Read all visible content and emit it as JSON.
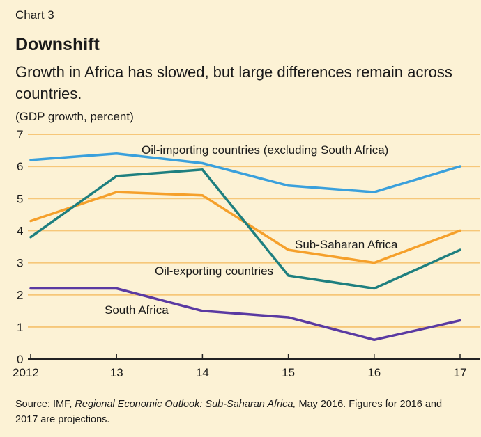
{
  "header": {
    "chart_label": "Chart 3",
    "title": "Downshift",
    "subtitle": "Growth in Africa has slowed, but large differences remain across countries.",
    "y_unit": "(GDP growth, percent)"
  },
  "footer": {
    "source_prefix": "Source: IMF, ",
    "source_italic": "Regional Economic Outlook: Sub-Saharan Africa,",
    "source_suffix": " May 2016. Figures for 2016 and 2017 are projections."
  },
  "chart_data": {
    "type": "line",
    "title": "Downshift",
    "subtitle": "Growth in Africa has slowed, but large differences remain across countries.",
    "ylabel": "(GDP growth, percent)",
    "xlabel": "",
    "categories": [
      "2012",
      "13",
      "14",
      "15",
      "16",
      "17"
    ],
    "ylim": [
      0,
      7
    ],
    "yticks": [
      0,
      1,
      2,
      3,
      4,
      5,
      6,
      7
    ],
    "grid": true,
    "series": [
      {
        "name": "Oil-importing countries (excluding South Africa)",
        "color": "#3aa0dc",
        "values": [
          6.2,
          6.4,
          6.1,
          5.4,
          5.2,
          6.0
        ]
      },
      {
        "name": "Sub-Saharan Africa",
        "color": "#f5a02b",
        "values": [
          4.3,
          5.2,
          5.1,
          3.4,
          3.0,
          4.0
        ]
      },
      {
        "name": "Oil-exporting countries",
        "color": "#1e7f7f",
        "values": [
          3.8,
          5.7,
          5.9,
          2.6,
          2.2,
          3.4
        ]
      },
      {
        "name": "South Africa",
        "color": "#5a3aa2",
        "values": [
          2.2,
          2.2,
          1.5,
          1.3,
          0.6,
          1.2
        ]
      }
    ],
    "colors": {
      "grid": "#f6c779",
      "axis": "#222222",
      "background": "#fcf2d5"
    }
  }
}
